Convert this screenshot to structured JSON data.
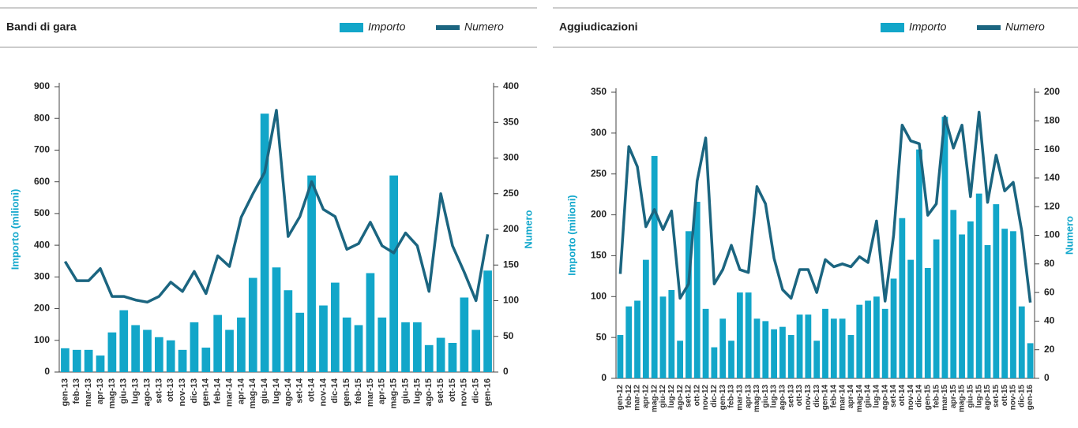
{
  "chart_data": [
    {
      "type": "bar",
      "title": "Bandi di gara",
      "y_label": "Importo (milioni)",
      "y2_label": "Numero",
      "categories": [
        "gen-13",
        "feb-13",
        "mar-13",
        "apr-13",
        "mag-13",
        "giu-13",
        "lug-13",
        "ago-13",
        "set-13",
        "ott-13",
        "nov-13",
        "dic-13",
        "gen-14",
        "feb-14",
        "mar-14",
        "apr-14",
        "mag-14",
        "giu-14",
        "lug-14",
        "ago-14",
        "set-14",
        "ott-14",
        "nov-14",
        "dic-14",
        "gen-15",
        "feb-15",
        "mar-15",
        "apr-15",
        "mag-15",
        "giu-15",
        "lug-15",
        "ago-15",
        "set-15",
        "ott-15",
        "nov-15",
        "dic-15",
        "gen-16"
      ],
      "series": [
        {
          "name": "Importo",
          "type": "bar",
          "color": "#12a6c9",
          "values": [
            75,
            70,
            70,
            52,
            125,
            195,
            148,
            133,
            110,
            100,
            70,
            157,
            77,
            180,
            133,
            172,
            297,
            815,
            330,
            258,
            187,
            620,
            210,
            282,
            172,
            148,
            312,
            172,
            620,
            157,
            157,
            85,
            108,
            92,
            235,
            133,
            320
          ]
        },
        {
          "name": "Numero",
          "type": "line",
          "axis": "y2",
          "color": "#1b6580",
          "values": [
            155,
            128,
            128,
            145,
            106,
            106,
            101,
            98,
            106,
            126,
            113,
            141,
            110,
            163,
            148,
            217,
            250,
            280,
            367,
            190,
            218,
            267,
            228,
            218,
            172,
            180,
            210,
            177,
            167,
            195,
            177,
            113,
            250,
            177,
            140,
            100,
            193
          ]
        }
      ],
      "ylim": [
        0,
        900
      ],
      "yticks": [
        0,
        100,
        200,
        300,
        400,
        500,
        600,
        700,
        800,
        900
      ],
      "y2lim": [
        0,
        400
      ],
      "y2ticks": [
        0,
        50,
        100,
        150,
        200,
        250,
        300,
        350,
        400
      ]
    },
    {
      "type": "bar",
      "title": "Aggiudicazioni",
      "y_label": "Importo (milioni)",
      "y2_label": "Numero",
      "categories": [
        "gen-12",
        "feb-12",
        "mar-12",
        "apr-12",
        "mag-12",
        "giu-12",
        "lug-12",
        "ago-12",
        "set-12",
        "ott-12",
        "nov-12",
        "dic-12",
        "gen-13",
        "feb-13",
        "mar-13",
        "apr-13",
        "mag-13",
        "giu-13",
        "lug-13",
        "ago-13",
        "set-13",
        "ott-13",
        "nov-13",
        "dic-13",
        "gen-14",
        "feb-14",
        "mar-14",
        "apr-14",
        "mag-14",
        "giu-14",
        "lug-14",
        "ago-14",
        "set-14",
        "ott-14",
        "nov-14",
        "dic-14",
        "gen-15",
        "feb-15",
        "mar-15",
        "apr-15",
        "mag-15",
        "giu-15",
        "lug-15",
        "ago-15",
        "set-15",
        "ott-15",
        "nov-15",
        "dic-15",
        "gen-16"
      ],
      "series": [
        {
          "name": "Importo",
          "type": "bar",
          "color": "#12a6c9",
          "values": [
            53,
            88,
            95,
            145,
            272,
            100,
            108,
            46,
            180,
            216,
            85,
            38,
            73,
            46,
            105,
            105,
            73,
            70,
            60,
            63,
            53,
            78,
            78,
            46,
            85,
            73,
            73,
            53,
            90,
            95,
            100,
            85,
            122,
            196,
            145,
            280,
            135,
            170,
            320,
            206,
            176,
            192,
            226,
            163,
            213,
            183,
            180,
            88,
            43
          ]
        },
        {
          "name": "Numero",
          "type": "line",
          "axis": "y2",
          "color": "#1b6580",
          "values": [
            73,
            162,
            148,
            106,
            118,
            104,
            117,
            56,
            66,
            138,
            168,
            66,
            76,
            93,
            76,
            74,
            134,
            122,
            84,
            62,
            56,
            76,
            76,
            60,
            83,
            78,
            80,
            78,
            85,
            81,
            110,
            54,
            100,
            177,
            166,
            164,
            114,
            122,
            183,
            161,
            177,
            127,
            186,
            123,
            156,
            131,
            137,
            103,
            53
          ]
        }
      ],
      "ylim": [
        0,
        350
      ],
      "yticks": [
        0,
        50,
        100,
        150,
        200,
        250,
        300,
        350
      ],
      "y2lim": [
        0,
        200
      ],
      "y2ticks": [
        0,
        20,
        40,
        60,
        80,
        100,
        120,
        140,
        160,
        180,
        200
      ]
    }
  ]
}
